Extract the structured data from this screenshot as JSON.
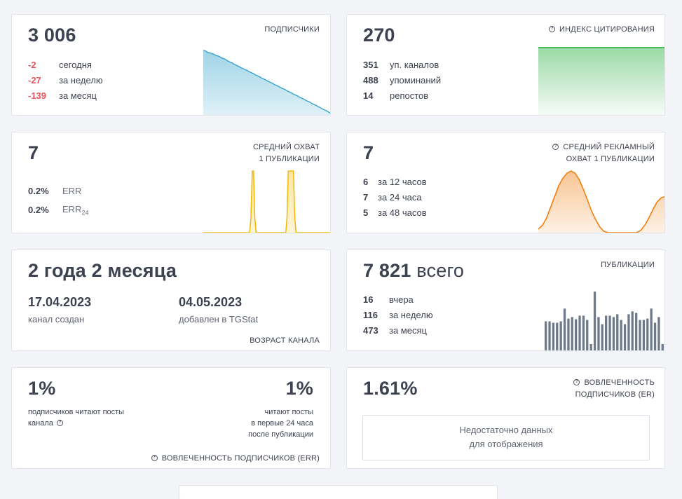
{
  "colors": {
    "negative": "#e8565c",
    "subscribers_line": "#2b9fc9",
    "citation": "#48bb5c",
    "reach": "#f5b800",
    "ad_reach": "#f07f10",
    "posts": "#6e7a8a"
  },
  "subscribers": {
    "total": "3 006",
    "label": "ПОДПИСЧИКИ",
    "rows": [
      {
        "num": "-2",
        "text": "сегодня"
      },
      {
        "num": "-27",
        "text": "за неделю"
      },
      {
        "num": "-139",
        "text": "за месяц"
      }
    ]
  },
  "citation": {
    "total": "270",
    "label": "ИНДЕКС ЦИТИРОВАНИЯ",
    "icon": "help-icon",
    "rows": [
      {
        "num": "351",
        "text": "уп. каналов"
      },
      {
        "num": "488",
        "text": "упоминаний"
      },
      {
        "num": "14",
        "text": "репостов"
      }
    ]
  },
  "reach": {
    "total": "7",
    "label_line1": "СРЕДНИЙ ОХВАТ",
    "label_line2": "1 ПУБЛИКАЦИИ",
    "rows": [
      {
        "num": "0.2%",
        "text": "ERR"
      },
      {
        "num": "0.2%",
        "text": "ERR",
        "subscript": "24"
      }
    ]
  },
  "ad_reach": {
    "total": "7",
    "label_line1": "СРЕДНИЙ РЕКЛАМНЫЙ",
    "label_line2": "ОХВАТ 1 ПУБЛИКАЦИИ",
    "icon": "help-icon",
    "rows": [
      {
        "num": "6",
        "text": "за 12 часов"
      },
      {
        "num": "7",
        "text": "за 24 часа"
      },
      {
        "num": "5",
        "text": "за 48 часов"
      }
    ]
  },
  "age": {
    "title": "2 года 2 месяца",
    "created_date": "17.04.2023",
    "created_label": "канал создан",
    "added_date": "04.05.2023",
    "added_label": "добавлен в TGStat",
    "label": "ВОЗРАСТ КАНАЛА"
  },
  "posts": {
    "total": "7 821",
    "total_suffix": "всего",
    "label": "ПУБЛИКАЦИИ",
    "rows": [
      {
        "num": "16",
        "text": "вчера"
      },
      {
        "num": "116",
        "text": "за неделю"
      },
      {
        "num": "473",
        "text": "за месяц"
      }
    ]
  },
  "err": {
    "left_value": "1%",
    "left_line1": "подписчиков читают посты",
    "left_line2": "канала",
    "right_value": "1%",
    "right_line1": "читают посты",
    "right_line2": "в первые 24 часа",
    "right_line3": "после публикации",
    "label": "ВОВЛЕЧЕННОСТЬ ПОДПИСЧИКОВ (ERR)",
    "icon": "help-icon"
  },
  "er": {
    "value": "1.61%",
    "label_line1": "ВОВЛЕЧЕННОСТЬ",
    "label_line2": "ПОДПИСЧИКОВ (ER)",
    "icon": "help-icon",
    "nodata_line1": "Недостаточно данных",
    "nodata_line2": "для отображения"
  },
  "chart_data": [
    {
      "type": "area",
      "series": [
        {
          "values": [
            3145,
            3144,
            3141,
            3140,
            3138,
            3137,
            3134,
            3133,
            3131,
            3128,
            3127,
            3124,
            3121,
            3119,
            3117,
            3114,
            3112,
            3110,
            3107,
            3105,
            3103,
            3101,
            3098,
            3096,
            3094,
            3091,
            3089,
            3087,
            3084,
            3082,
            3080,
            3077,
            3075,
            3073,
            3070,
            3068,
            3066,
            3063,
            3061,
            3059,
            3056,
            3054,
            3052,
            3049,
            3047,
            3045,
            3042,
            3040,
            3038,
            3035,
            3033,
            3031,
            3028,
            3026,
            3024,
            3021,
            3019,
            3016,
            3014,
            3012,
            3009,
            3006
          ]
        }
      ]
    },
    {
      "type": "area",
      "series": [
        {
          "values": [
            270,
            270,
            270,
            270,
            270,
            270,
            270,
            270,
            270,
            270
          ]
        }
      ]
    },
    {
      "type": "area",
      "series": [
        {
          "values": [
            0,
            0,
            0,
            0,
            0,
            0,
            0,
            0,
            0,
            0,
            0,
            0,
            0,
            0,
            0,
            0,
            0,
            0,
            0,
            0,
            0,
            0,
            0,
            0,
            0,
            0,
            0,
            0,
            0,
            0,
            0,
            0,
            0,
            0,
            0,
            0,
            0,
            2,
            8,
            8,
            2,
            0,
            0,
            0,
            0,
            0,
            0,
            0,
            0,
            0,
            0,
            0,
            0,
            0,
            0,
            0,
            0,
            0,
            0,
            0,
            0,
            0,
            0,
            0,
            0,
            2,
            8,
            8,
            8,
            8,
            8,
            2,
            0,
            0,
            0,
            0,
            0,
            0,
            0,
            0,
            0,
            0,
            0,
            0,
            0,
            0,
            0,
            0,
            0,
            0,
            0,
            0,
            0,
            0,
            0,
            0,
            0,
            0,
            0,
            0
          ]
        }
      ]
    },
    {
      "type": "area",
      "series": [
        {
          "values": [
            0.5,
            1,
            2,
            3.5,
            5,
            6.5,
            7.5,
            8.2,
            8.5,
            8.2,
            7.3,
            6,
            4.5,
            3,
            1.8,
            0.8,
            0.2,
            0,
            0,
            0,
            0,
            0,
            0,
            0,
            0,
            0.3,
            1,
            2,
            3.2,
            4.2,
            4.8,
            5
          ]
        }
      ]
    },
    {
      "type": "bar",
      "series": [
        {
          "values": [
            42,
            42,
            40,
            40,
            42,
            60,
            46,
            48,
            45,
            50,
            50,
            44,
            10,
            84,
            48,
            38,
            50,
            50,
            48,
            52,
            44,
            38,
            52,
            56,
            54,
            44,
            44,
            46,
            60,
            40,
            48,
            10
          ]
        }
      ]
    }
  ]
}
